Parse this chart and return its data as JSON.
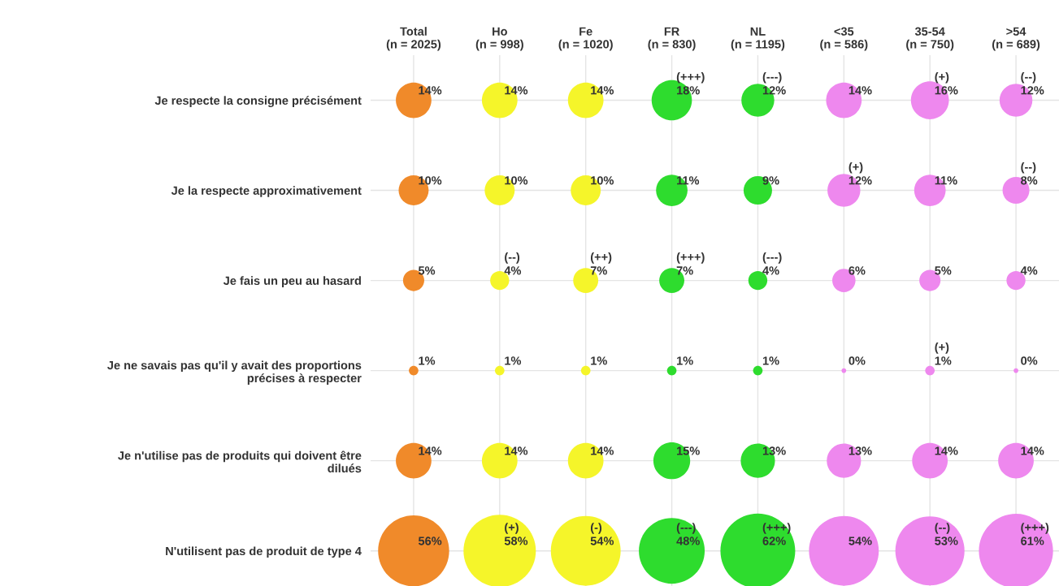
{
  "chart_data": {
    "type": "heatmap",
    "marker": "circle",
    "grid": true,
    "categories": [
      "Total\n(n = 2025)",
      "Ho\n(n = 998)",
      "Fe\n(n = 1020)",
      "FR\n(n = 830)",
      "NL\n(n = 1195)",
      "<35\n(n = 586)",
      "35-54\n(n = 750)",
      ">54\n(n = 689)"
    ],
    "y_categories": [
      "Je respecte la consigne précisément",
      "Je la respecte approximativement",
      "Je fais un peu au hasard",
      "Je ne savais pas qu'il y avait des proportions\nprécises à respecter",
      "Je n'utilise pas de produits qui doivent être\ndilués",
      "N'utilisent pas de produit de type 4"
    ],
    "colors": [
      [
        "#f08a2a",
        "#f5f52a",
        "#f5f52a",
        "#2edc2e",
        "#2edc2e",
        "#ee88ee",
        "#ee88ee",
        "#ee88ee"
      ],
      [
        "#f08a2a",
        "#f5f52a",
        "#f5f52a",
        "#2edc2e",
        "#2edc2e",
        "#ee88ee",
        "#ee88ee",
        "#ee88ee"
      ],
      [
        "#f08a2a",
        "#f5f52a",
        "#f5f52a",
        "#2edc2e",
        "#2edc2e",
        "#ee88ee",
        "#ee88ee",
        "#ee88ee"
      ],
      [
        "#f08a2a",
        "#f5f52a",
        "#f5f52a",
        "#2edc2e",
        "#2edc2e",
        "#ee88ee",
        "#ee88ee",
        "#ee88ee"
      ],
      [
        "#f08a2a",
        "#f5f52a",
        "#f5f52a",
        "#2edc2e",
        "#2edc2e",
        "#ee88ee",
        "#ee88ee",
        "#ee88ee"
      ],
      [
        "#f08a2a",
        "#f5f52a",
        "#f5f52a",
        "#2edc2e",
        "#2edc2e",
        "#ee88ee",
        "#ee88ee",
        "#ee88ee"
      ]
    ],
    "cells": [
      [
        14,
        14,
        14,
        18,
        12,
        14,
        16,
        12
      ],
      [
        10,
        10,
        10,
        11,
        9,
        12,
        11,
        8
      ],
      [
        5,
        4,
        7,
        7,
        4,
        6,
        5,
        4
      ],
      [
        1,
        1,
        1,
        1,
        1,
        0,
        1,
        0
      ],
      [
        14,
        14,
        14,
        15,
        13,
        13,
        14,
        14
      ],
      [
        56,
        58,
        54,
        48,
        62,
        54,
        53,
        61
      ]
    ],
    "cell_labels": [
      [
        "14%",
        "14%",
        "14%",
        "(+++)\n18%",
        "(---)\n12%",
        "14%",
        "(+)\n16%",
        "(--)\n12%"
      ],
      [
        "10%",
        "10%",
        "10%",
        "11%",
        "9%",
        "(+)\n12%",
        "11%",
        "(--)\n8%"
      ],
      [
        "5%",
        "(--)\n4%",
        "(++)\n7%",
        "(+++)\n7%",
        "(---)\n4%",
        "6%",
        "5%",
        "4%"
      ],
      [
        "1%",
        "1%",
        "1%",
        "1%",
        "1%",
        "0%",
        "(+)\n1%",
        "0%"
      ],
      [
        "14%",
        "14%",
        "14%",
        "15%",
        "13%",
        "13%",
        "14%",
        "14%"
      ],
      [
        "56%",
        "(+)\n58%",
        "(-)\n54%",
        "(---)\n48%",
        "(+++)\n62%",
        "54%",
        "(--)\n53%",
        "(+++)\n61%"
      ]
    ]
  }
}
